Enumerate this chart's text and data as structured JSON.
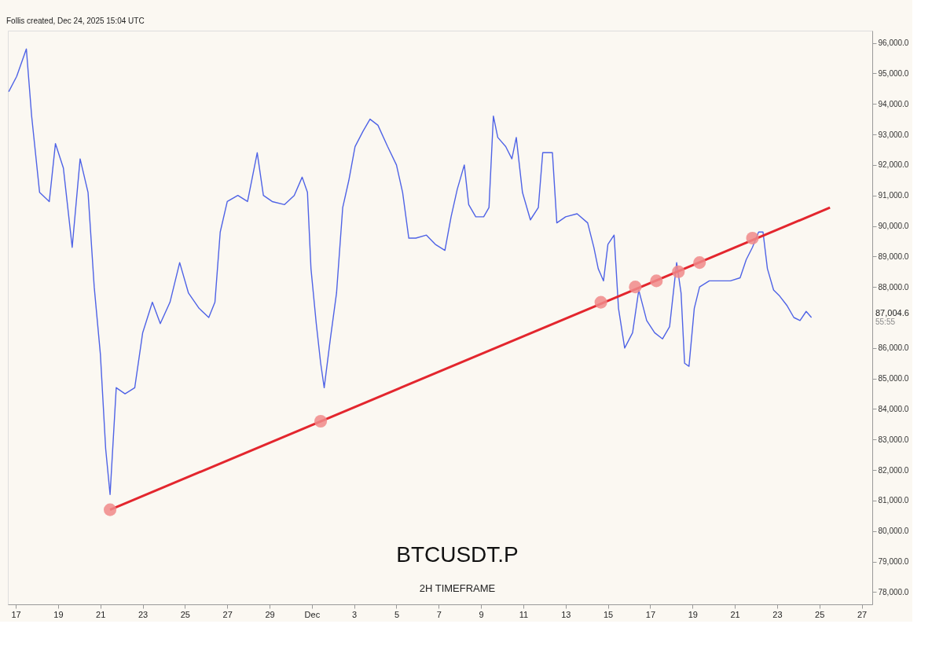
{
  "chart_data": {
    "type": "line",
    "title": "BTCUSDT.P",
    "subtitle": "2H TIMEFRAME",
    "annotations": [
      "87,004.6",
      "55:55",
      "Follis created, Dec 24, 2025 15:04 UTC"
    ],
    "xlim": [
      "2025-11-16T15:00",
      "2025-12-27T12:00"
    ],
    "xticks": [
      {
        "value": "2025-11-17",
        "label": "17"
      },
      {
        "value": "2025-11-19",
        "label": "19"
      },
      {
        "value": "2025-11-21",
        "label": "21"
      },
      {
        "value": "2025-11-23",
        "label": "23"
      },
      {
        "value": "2025-11-25",
        "label": "25"
      },
      {
        "value": "2025-11-27",
        "label": "27"
      },
      {
        "value": "2025-11-29",
        "label": "29"
      },
      {
        "value": "2025-12-01",
        "label": "Dec"
      },
      {
        "value": "2025-12-03",
        "label": "3"
      },
      {
        "value": "2025-12-05",
        "label": "5"
      },
      {
        "value": "2025-12-07",
        "label": "7"
      },
      {
        "value": "2025-12-09",
        "label": "9"
      },
      {
        "value": "2025-12-11",
        "label": "11"
      },
      {
        "value": "2025-12-13",
        "label": "13"
      },
      {
        "value": "2025-12-15",
        "label": "15"
      },
      {
        "value": "2025-12-17",
        "label": "17"
      },
      {
        "value": "2025-12-19",
        "label": "19"
      },
      {
        "value": "2025-12-21",
        "label": "21"
      },
      {
        "value": "2025-12-23",
        "label": "23"
      },
      {
        "value": "2025-12-25",
        "label": "25"
      },
      {
        "value": "2025-12-27",
        "label": "27"
      }
    ],
    "ylim": [
      77600,
      96400
    ],
    "yticks": [
      {
        "value": 78000,
        "label": "78,000.0"
      },
      {
        "value": 79000,
        "label": "79,000.0"
      },
      {
        "value": 80000,
        "label": "80,000.0"
      },
      {
        "value": 81000,
        "label": "81,000.0"
      },
      {
        "value": 82000,
        "label": "82,000.0"
      },
      {
        "value": 83000,
        "label": "83,000.0"
      },
      {
        "value": 84000,
        "label": "84,000.0"
      },
      {
        "value": 85000,
        "label": "85,000.0"
      },
      {
        "value": 86000,
        "label": "86,000.0"
      },
      {
        "value": 88000,
        "label": "88,000.0"
      },
      {
        "value": 89000,
        "label": "89,000.0"
      },
      {
        "value": 90000,
        "label": "90,000.0"
      },
      {
        "value": 91000,
        "label": "91,000.0"
      },
      {
        "value": 92000,
        "label": "92,000.0"
      },
      {
        "value": 93000,
        "label": "93,000.0"
      },
      {
        "value": 94000,
        "label": "94,000.0"
      },
      {
        "value": 95000,
        "label": "95,000.0"
      },
      {
        "value": 96000,
        "label": "96,000.0"
      }
    ],
    "series": [
      {
        "color": "#4f63e6",
        "x": [
          "2025-11-16T16:00",
          "2025-11-17T01:00",
          "2025-11-17T12:00",
          "2025-11-17T18:00",
          "2025-11-18T03:00",
          "2025-11-18T14:00",
          "2025-11-18T21:00",
          "2025-11-19T06:00",
          "2025-11-19T16:00",
          "2025-11-20T01:00",
          "2025-11-20T10:00",
          "2025-11-20T17:00",
          "2025-11-21T00:00",
          "2025-11-21T06:00",
          "2025-11-21T11:00",
          "2025-11-21T18:00",
          "2025-11-22T04:00",
          "2025-11-22T15:00",
          "2025-11-23T00:00",
          "2025-11-23T11:00",
          "2025-11-23T20:00",
          "2025-11-24T07:00",
          "2025-11-24T18:00",
          "2025-11-25T04:00",
          "2025-11-25T16:00",
          "2025-11-26T03:00",
          "2025-11-26T10:00",
          "2025-11-26T16:00",
          "2025-11-27T00:00",
          "2025-11-27T12:00",
          "2025-11-27T23:00",
          "2025-11-28T10:00",
          "2025-11-28T17:00",
          "2025-11-29T03:00",
          "2025-11-29T17:00",
          "2025-11-30T04:00",
          "2025-11-30T13:00",
          "2025-11-30T19:00",
          "2025-11-30T23:00",
          "2025-12-01T05:00",
          "2025-12-01T10:00",
          "2025-12-01T14:00",
          "2025-12-01T21:00",
          "2025-12-02T04:00",
          "2025-12-02T11:00",
          "2025-12-02T18:00",
          "2025-12-03T01:00",
          "2025-12-03T10:00",
          "2025-12-03T18:00",
          "2025-12-04T03:00",
          "2025-12-04T14:00",
          "2025-12-05T00:00",
          "2025-12-05T07:00",
          "2025-12-05T14:00",
          "2025-12-05T22:00",
          "2025-12-06T10:00",
          "2025-12-06T20:00",
          "2025-12-07T07:00",
          "2025-12-07T14:00",
          "2025-12-07T21:00",
          "2025-12-08T05:00",
          "2025-12-08T10:00",
          "2025-12-08T18:00",
          "2025-12-09T03:00",
          "2025-12-09T09:00",
          "2025-12-09T14:00",
          "2025-12-09T19:00",
          "2025-12-10T04:00",
          "2025-12-10T11:00",
          "2025-12-10T16:00",
          "2025-12-10T23:00",
          "2025-12-11T08:00",
          "2025-12-11T17:00",
          "2025-12-11T22:00",
          "2025-12-12T09:00",
          "2025-12-12T14:00",
          "2025-12-13T00:00",
          "2025-12-13T13:00",
          "2025-12-14T01:00",
          "2025-12-14T08:00",
          "2025-12-14T13:00",
          "2025-12-14T19:00",
          "2025-12-15T00:00",
          "2025-12-15T07:00",
          "2025-12-15T12:00",
          "2025-12-15T19:00",
          "2025-12-16T04:00",
          "2025-12-16T11:00",
          "2025-12-16T20:00",
          "2025-12-17T05:00",
          "2025-12-17T14:00",
          "2025-12-17T22:00",
          "2025-12-18T06:00",
          "2025-12-18T11:00",
          "2025-12-18T15:00",
          "2025-12-18T20:00",
          "2025-12-19T02:00",
          "2025-12-19T08:00",
          "2025-12-19T19:00",
          "2025-12-20T06:00",
          "2025-12-20T19:00",
          "2025-12-21T06:00",
          "2025-12-21T13:00",
          "2025-12-21T20:00",
          "2025-12-22T03:00",
          "2025-12-22T08:00",
          "2025-12-22T13:00",
          "2025-12-22T20:00",
          "2025-12-23T03:00",
          "2025-12-23T11:00",
          "2025-12-23T19:00",
          "2025-12-24T02:00",
          "2025-12-24T09:00",
          "2025-12-24T15:00"
        ],
        "values": [
          94400,
          94900,
          95800,
          93600,
          91100,
          90800,
          92700,
          91900,
          89300,
          92200,
          91100,
          88000,
          85800,
          82700,
          81200,
          84700,
          84500,
          84700,
          86500,
          87500,
          86800,
          87500,
          88800,
          87800,
          87300,
          87000,
          87500,
          89800,
          90800,
          91000,
          90800,
          92400,
          91000,
          90800,
          90700,
          91000,
          91600,
          91100,
          88600,
          86800,
          85500,
          84700,
          86300,
          87800,
          90600,
          91500,
          92600,
          93100,
          93500,
          93300,
          92600,
          92000,
          91100,
          89600,
          89600,
          89700,
          89400,
          89200,
          90300,
          91200,
          92000,
          90700,
          90300,
          90300,
          90600,
          93600,
          92900,
          92600,
          92200,
          92900,
          91100,
          90200,
          90600,
          92400,
          92400,
          90100,
          90300,
          90400,
          90100,
          89300,
          88600,
          88200,
          89400,
          89700,
          87300,
          86000,
          86500,
          87900,
          86900,
          86500,
          86300,
          86700,
          88800,
          87800,
          85500,
          85400,
          87300,
          88000,
          88200,
          88200,
          88200,
          88300,
          88900,
          89300,
          89800,
          89800,
          88600,
          87900,
          87700,
          87400,
          87000,
          86900,
          87200,
          87000
        ]
      },
      {
        "type": "line",
        "color": "#e3262e",
        "x": [
          "2025-11-21T11:00",
          "2025-12-25T12:00"
        ],
        "values": [
          80700,
          90600
        ]
      },
      {
        "type": "scatter",
        "marker": "circle",
        "color": "#f08a8a",
        "x": [
          "2025-11-21T11:00",
          "2025-12-01T10:00",
          "2025-12-14T16:00",
          "2025-12-16T07:00",
          "2025-12-17T07:00",
          "2025-12-18T08:00",
          "2025-12-19T08:00",
          "2025-12-21T20:00"
        ],
        "values": [
          80700,
          83600,
          87500,
          88000,
          88200,
          88500,
          88800,
          89600
        ]
      }
    ]
  }
}
